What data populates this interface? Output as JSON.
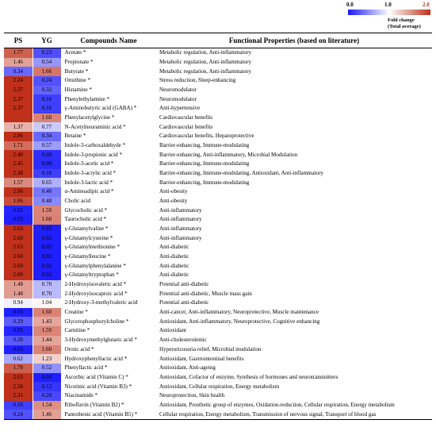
{
  "legend": {
    "min": "0.0",
    "mid": "1.0",
    "max": "2.0",
    "caption1": "Fold change",
    "caption2": "(Total average)"
  },
  "headers": {
    "ps": "PS",
    "yg": "YG",
    "name": "Compounds Name",
    "func": "Functional Properties (based on literature)"
  },
  "colors": {
    "low": "#1a1aff",
    "mid": "#ffffff",
    "high": "#c0301a"
  },
  "rows": [
    {
      "ps": "1.77",
      "yg": "0.23",
      "name": "Acetate *",
      "func": "Metabolic regulation, Anti-inflammatory"
    },
    {
      "ps": "1.46",
      "yg": "0.54",
      "name": "Propionate *",
      "func": "Metabolic regulation, Anti-inflammatory"
    },
    {
      "ps": "0.34",
      "yg": "1.66",
      "name": "Butyrate *",
      "func": "Metabolic regulation, Anti-inflammatory"
    },
    {
      "ps": "2.24",
      "yg": "0.24",
      "name": "Ornithine *",
      "func": "Stress reduction, Sleep-enhancing"
    },
    {
      "ps": "2.37",
      "yg": "0.32",
      "name": "Histamine *",
      "func": "Neuromodulator"
    },
    {
      "ps": "2.37",
      "yg": "0.16",
      "name": "Phenylethylamine *",
      "func": "Neuromodulator"
    },
    {
      "ps": "2.37",
      "yg": "0.16",
      "name": "γ-Aminobutyric acid (GABA) *",
      "func": "Anti-hypertensive"
    },
    {
      "ps": "",
      "yg": "1.60",
      "name": "Phenylacetylglycine *",
      "func": "Cardiovascular benefits"
    },
    {
      "ps": "1.37",
      "yg": "0.77",
      "name": "N-Acetylneuraminic acid *",
      "func": "Cardiovascular benefits"
    },
    {
      "ps": "2.06",
      "yg": "0.34",
      "name": "Betaine *",
      "func": "Cardiovascular benefits, Hepatoprotective"
    },
    {
      "ps": "1.71",
      "yg": "0.57",
      "name": "Indole-3-carboxaldehyde *",
      "func": "Barrier-enhancing, Immune-modulating"
    },
    {
      "ps": "2.48",
      "yg": "0.09",
      "name": "Indole-3-propionic acid *",
      "func": "Barrier-enhancing, Anti-inflammatory, Microbial Modulation"
    },
    {
      "ps": "2.45",
      "yg": "0.08",
      "name": "Indole-3-acetic acid *",
      "func": "Barrier-enhancing, Immune-modulating"
    },
    {
      "ps": "2.38",
      "yg": "0.16",
      "name": "Indole-3-acrylic acid *",
      "func": "Barrier-enhancing, Immune-modulating, Antioxidant, Anti-inflammatory"
    },
    {
      "ps": "1.57",
      "yg": "0.65",
      "name": "Indole-3-lactic acid *",
      "func": "Barrier-enhancing, Immune-modulating"
    },
    {
      "ps": "2.06",
      "yg": "0.40",
      "name": "α-Aminoadipic acid *",
      "func": "Anti-obesity"
    },
    {
      "ps": "1.86",
      "yg": "0.48",
      "name": "Cholic acid",
      "func": "Anti-obesity"
    },
    {
      "ps": "0.05",
      "yg": "1.59",
      "name": "Glycocholic acid *",
      "func": "Anti-inflammatory"
    },
    {
      "ps": "0.03",
      "yg": "1.60",
      "name": "Taurocholic acid *",
      "func": "Anti-inflammatory"
    },
    {
      "ps": "2.63",
      "yg": "0.02",
      "name": "γ-Glutamylvaline *",
      "func": "Anti-inflammatory"
    },
    {
      "ps": "2.60",
      "yg": "0.02",
      "name": "γ-Glutamylcysteine *",
      "func": "Anti-inflammatory"
    },
    {
      "ps": "2.63",
      "yg": "0.02",
      "name": "γ-Glutamylmethionine *",
      "func": "Anti-diabetic"
    },
    {
      "ps": "2.60",
      "yg": "0.02",
      "name": "γ-Glutamylleucine *",
      "func": "Anti-diabetic"
    },
    {
      "ps": "2.60",
      "yg": "0.02",
      "name": "γ-Glutamylphenylalanine *",
      "func": "Anti-diabetic"
    },
    {
      "ps": "2.60",
      "yg": "0.02",
      "name": "γ-Glutamyltryptophan *",
      "func": "Anti-diabetic"
    },
    {
      "ps": "1.48",
      "yg": "0.70",
      "name": "2-Hydroxyisovaleric acid *",
      "func": "Potential anti-diabetic"
    },
    {
      "ps": "1.48",
      "yg": "0.70",
      "name": "2-Hydroxyisocaproic acid *",
      "func": "Potential anti-diabetic, Muscle mass gain"
    },
    {
      "ps": "0.94",
      "yg": "1.04",
      "name": "2-Hydroxy-3-methylvaleric acid",
      "func": "Potential anti-diabetic"
    },
    {
      "ps": "0.03",
      "yg": "1.60",
      "name": "Creatine *",
      "func": "Anti-cancer, Anti-inflammatory, Neuroprotective, Muscle maintenance"
    },
    {
      "ps": "0.29",
      "yg": "1.43",
      "name": "Glycerophosphorylcholine *",
      "func": "Antioxidant, Anti-inflammatory, Neuroprotective, Cognitive enhancing"
    },
    {
      "ps": "0.05",
      "yg": "1.59",
      "name": "Carnitine *",
      "func": "Antioxidant"
    },
    {
      "ps": "0.28",
      "yg": "1.44",
      "name": "3-Hydroxymethylglutaric acid *",
      "func": "Anti-cholesterolemic"
    },
    {
      "ps": "0.03",
      "yg": "1.60",
      "name": "Orotic acid *",
      "func": "Hyperuricosuria relief, Microbial modulation"
    },
    {
      "ps": "0.62",
      "yg": "1.23",
      "name": "Hydroxyphenyllactic acid *",
      "func": "Antioxidant, Gastrointestinal benefits"
    },
    {
      "ps": "1.78",
      "yg": "0.52",
      "name": "Phenyllactic acid *",
      "func": "Antioxidant, Anti-ageing"
    },
    {
      "ps": "2.63",
      "yg": "0.02",
      "name": "Ascorbic acid (Vitamin C) *",
      "func": "Antioxidant, Cofactor of enzyme, Synthesis of hormones and neurotransmitters"
    },
    {
      "ps": "2.58",
      "yg": "0.12",
      "name": "Nicotinic acid (Vitamin B3) *",
      "func": "Antioxidant, Cellular respiration, Energy metabolism"
    },
    {
      "ps": "2.31",
      "yg": "0.20",
      "name": "Niacinamide *",
      "func": "Neuroprotection, Skin health"
    },
    {
      "ps": "0.16",
      "yg": "1.54",
      "name": "Riboflavin (Vitamin B2) *",
      "func": "Antioxidant, Prosthetic group of enzymes, Oxidation-reduction, Cellular respiration, Energy metabolism"
    },
    {
      "ps": "0.24",
      "yg": "1.46",
      "name": "Pantothenic acid (Vitamin B5) *",
      "func": "Cellular respiration, Energy metabolism, Transmission of nervous signal, Transport of blood gas"
    }
  ]
}
